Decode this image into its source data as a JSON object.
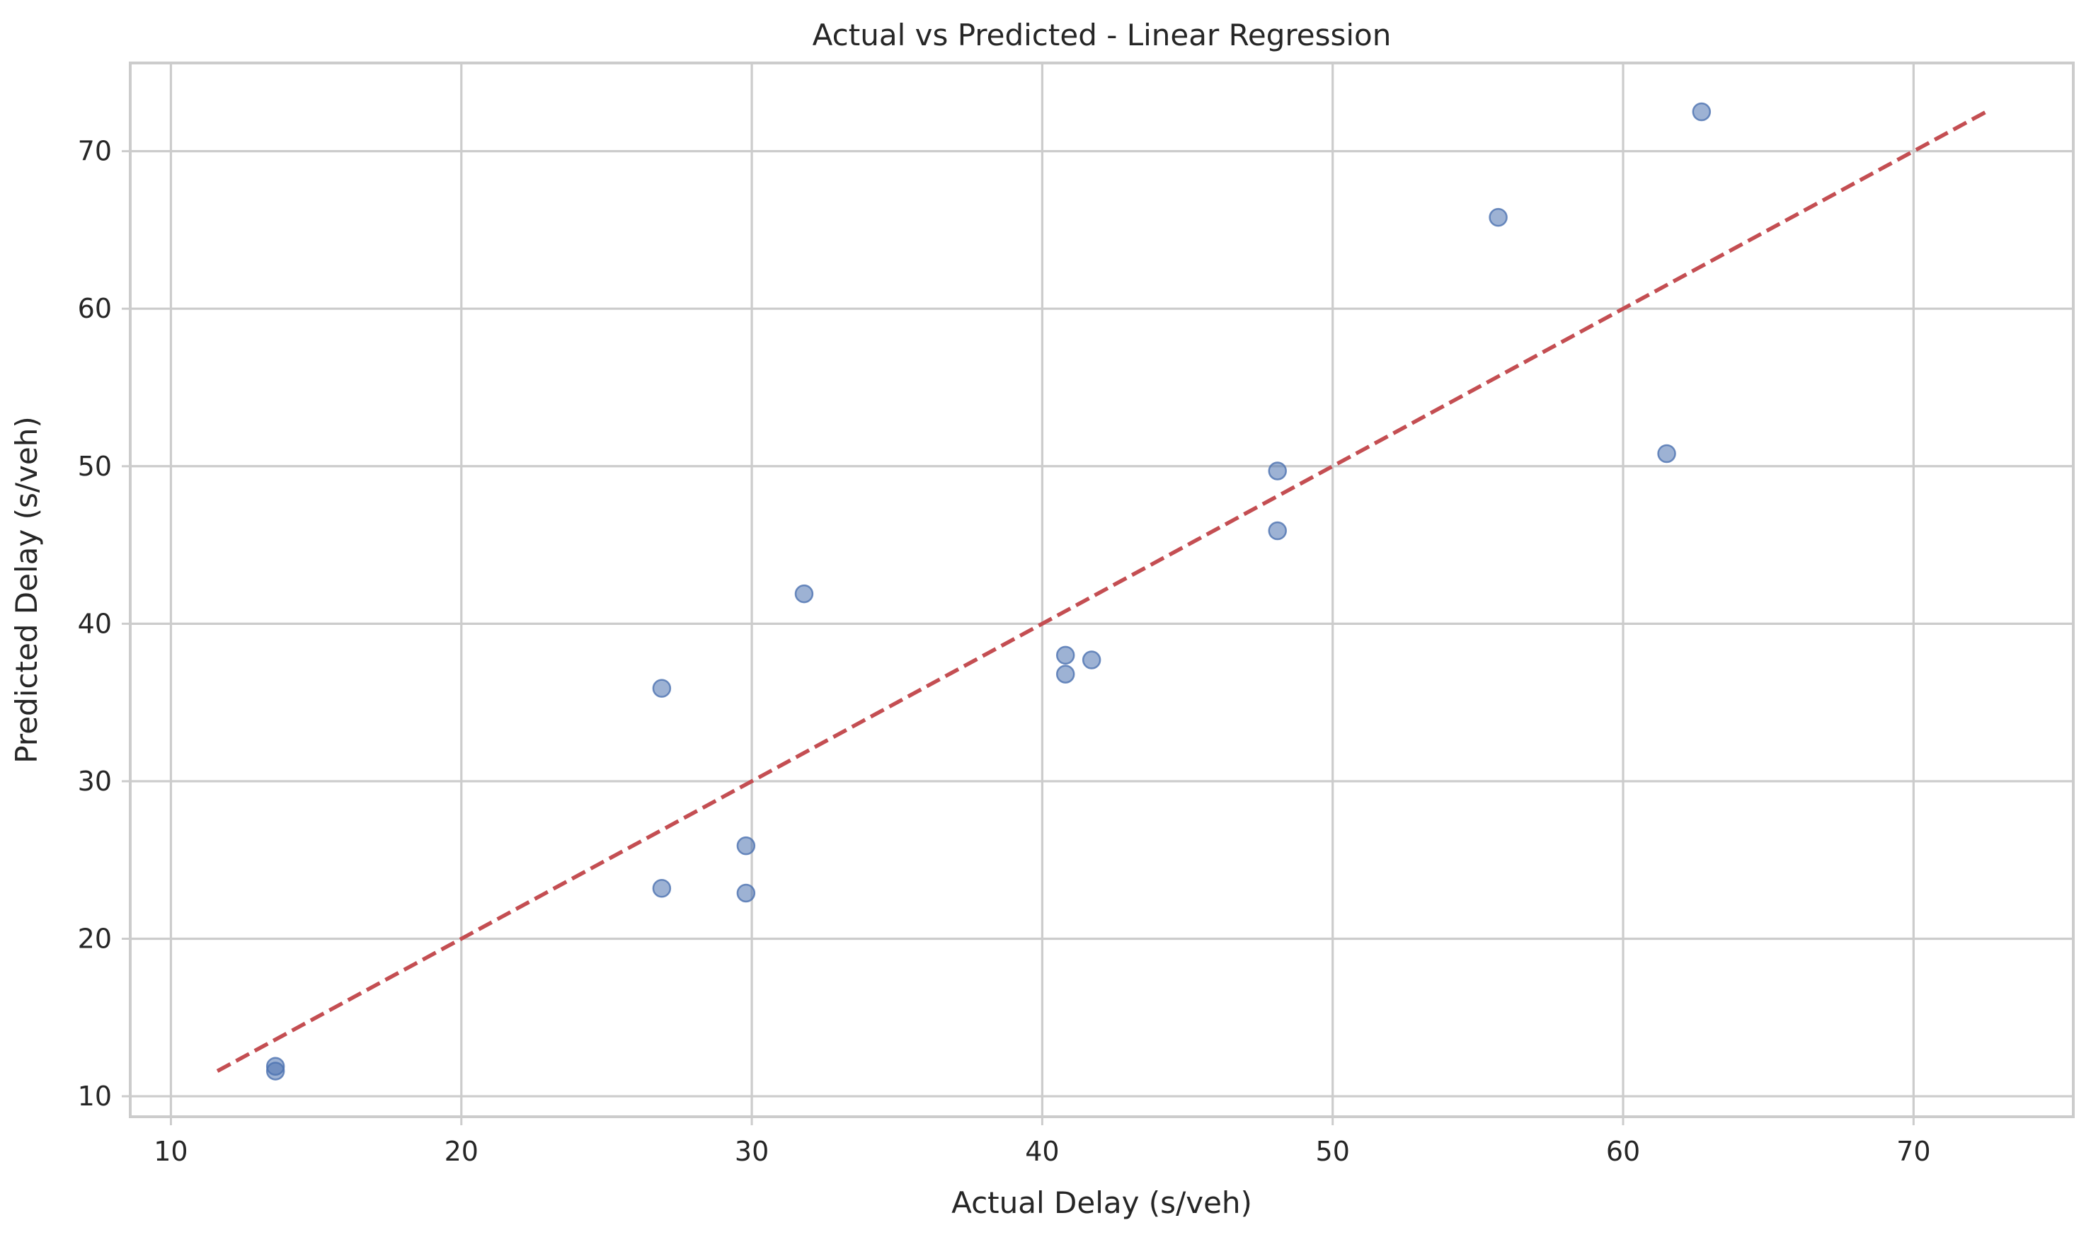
{
  "chart_data": {
    "type": "scatter",
    "title": "Actual vs Predicted - Linear Regression",
    "xlabel": "Actual Delay (s/veh)",
    "ylabel": "Predicted Delay (s/veh)",
    "xlim": [
      8.6,
      75.5
    ],
    "ylim": [
      8.7,
      75.6
    ],
    "x_ticks": [
      10,
      20,
      30,
      40,
      50,
      60,
      70
    ],
    "y_ticks": [
      10,
      20,
      30,
      40,
      50,
      60,
      70
    ],
    "grid": true,
    "points": [
      {
        "x": 13.6,
        "y": 11.9
      },
      {
        "x": 13.6,
        "y": 11.6
      },
      {
        "x": 26.9,
        "y": 35.9
      },
      {
        "x": 26.9,
        "y": 23.2
      },
      {
        "x": 29.8,
        "y": 25.9
      },
      {
        "x": 29.8,
        "y": 22.9
      },
      {
        "x": 31.8,
        "y": 41.9
      },
      {
        "x": 40.8,
        "y": 38.0
      },
      {
        "x": 40.8,
        "y": 36.8
      },
      {
        "x": 41.7,
        "y": 37.7
      },
      {
        "x": 48.1,
        "y": 49.7
      },
      {
        "x": 48.1,
        "y": 45.9
      },
      {
        "x": 55.7,
        "y": 65.8
      },
      {
        "x": 61.5,
        "y": 50.8
      },
      {
        "x": 62.7,
        "y": 72.5
      }
    ],
    "reference_line": {
      "x": [
        11.6,
        72.5
      ],
      "y": [
        11.6,
        72.5
      ],
      "style": "dashed"
    },
    "colors": {
      "points": "#4c72b0",
      "reference_line": "#c44e52",
      "grid": "#cccccc",
      "frame": "#cccccc",
      "text": "#262626"
    }
  }
}
